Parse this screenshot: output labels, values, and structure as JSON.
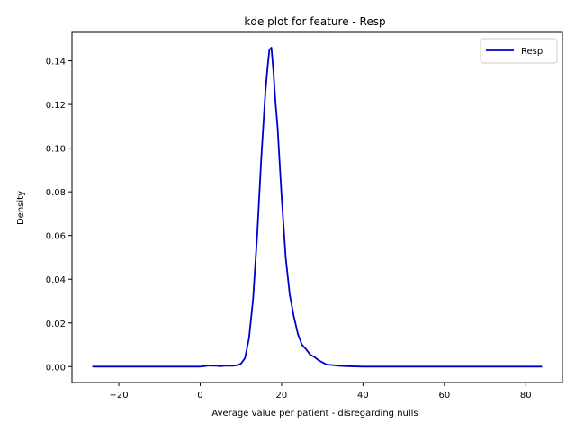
{
  "chart_data": {
    "type": "line",
    "title": "kde plot for feature -  Resp",
    "xlabel": "Average value per patient - disregarding nulls",
    "ylabel": "Density",
    "xlim": [
      -31.5,
      89
    ],
    "ylim": [
      -0.0073,
      0.153
    ],
    "xticks": [
      -20,
      0,
      20,
      40,
      60,
      80
    ],
    "xtick_labels": [
      "−20",
      "0",
      "20",
      "40",
      "60",
      "80"
    ],
    "yticks": [
      0.0,
      0.02,
      0.04,
      0.06,
      0.08,
      0.1,
      0.12,
      0.14
    ],
    "ytick_labels": [
      "0.00",
      "0.02",
      "0.04",
      "0.06",
      "0.08",
      "0.10",
      "0.12",
      "0.14"
    ],
    "grid": false,
    "legend_position": "top-right",
    "series": [
      {
        "name": "Resp",
        "color": "#0000cc",
        "x": [
          -26.5,
          -20,
          -10,
          0,
          1,
          2,
          3,
          4,
          5,
          6,
          7,
          8,
          9,
          10,
          11,
          12,
          13,
          14,
          15,
          16,
          16.5,
          17,
          17.5,
          18,
          18.5,
          19,
          20,
          21,
          22,
          23,
          24,
          25,
          26,
          27,
          28,
          29,
          30,
          31,
          32,
          33,
          34,
          35,
          36,
          38,
          40,
          45,
          50,
          60,
          70,
          84
        ],
        "y": [
          0.0,
          0.0,
          0.0,
          0.0,
          0.0002,
          0.0005,
          0.0004,
          0.0004,
          0.0002,
          0.0004,
          0.0004,
          0.0004,
          0.0006,
          0.0013,
          0.0038,
          0.013,
          0.031,
          0.06,
          0.095,
          0.125,
          0.136,
          0.145,
          0.146,
          0.135,
          0.121,
          0.11,
          0.078,
          0.05,
          0.033,
          0.023,
          0.015,
          0.01,
          0.008,
          0.0055,
          0.0045,
          0.003,
          0.002,
          0.001,
          0.0008,
          0.0006,
          0.0004,
          0.0003,
          0.0002,
          0.0001,
          0.0,
          0.0,
          0.0,
          0.0,
          0.0,
          0.0
        ]
      }
    ]
  }
}
